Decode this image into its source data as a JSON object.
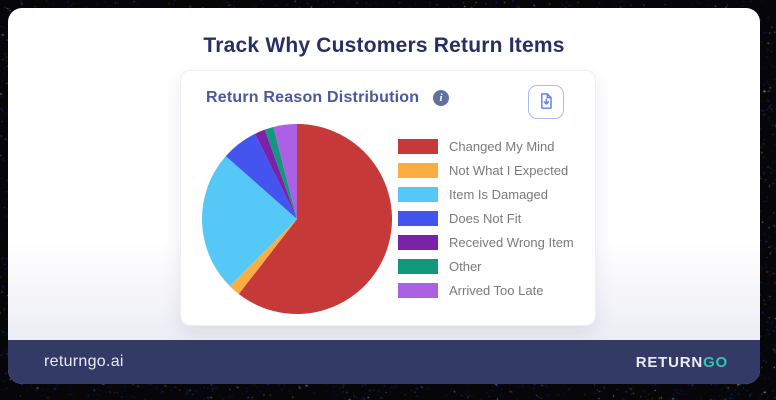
{
  "page": {
    "title": "Track Why Customers Return Items"
  },
  "card": {
    "title": "Return Reason Distribution",
    "info_icon": "info-icon",
    "download_icon": "file-download-icon"
  },
  "chart_data": {
    "type": "pie",
    "title": "Return Reason Distribution",
    "legend_position": "right",
    "start_angle_deg": 0,
    "direction": "clockwise",
    "slices": [
      {
        "label": "Changed My Mind",
        "value_pct": 60.5,
        "color": "#c63939"
      },
      {
        "label": "Not What I Expected",
        "value_pct": 2.0,
        "color": "#f9ad42"
      },
      {
        "label": "Item Is Damaged",
        "value_pct": 24.0,
        "color": "#55c8f7"
      },
      {
        "label": "Does Not Fit",
        "value_pct": 6.2,
        "color": "#4355ee"
      },
      {
        "label": "Received Wrong Item",
        "value_pct": 1.8,
        "color": "#7a22a8"
      },
      {
        "label": "Other",
        "value_pct": 1.5,
        "color": "#12997d"
      },
      {
        "label": "Arrived Too Late",
        "value_pct": 4.0,
        "color": "#ac61e4"
      }
    ]
  },
  "footer": {
    "site": "returngo.ai",
    "brand_return": "RETURN",
    "brand_go": "GO"
  },
  "colors": {
    "page_title": "#292e63",
    "card_title": "#4a589d",
    "footer_bg": "#343a66",
    "brand_teal": "#2ec7b5",
    "download_accent": "#5d7ce8",
    "legend_text": "#7a7a7a"
  }
}
